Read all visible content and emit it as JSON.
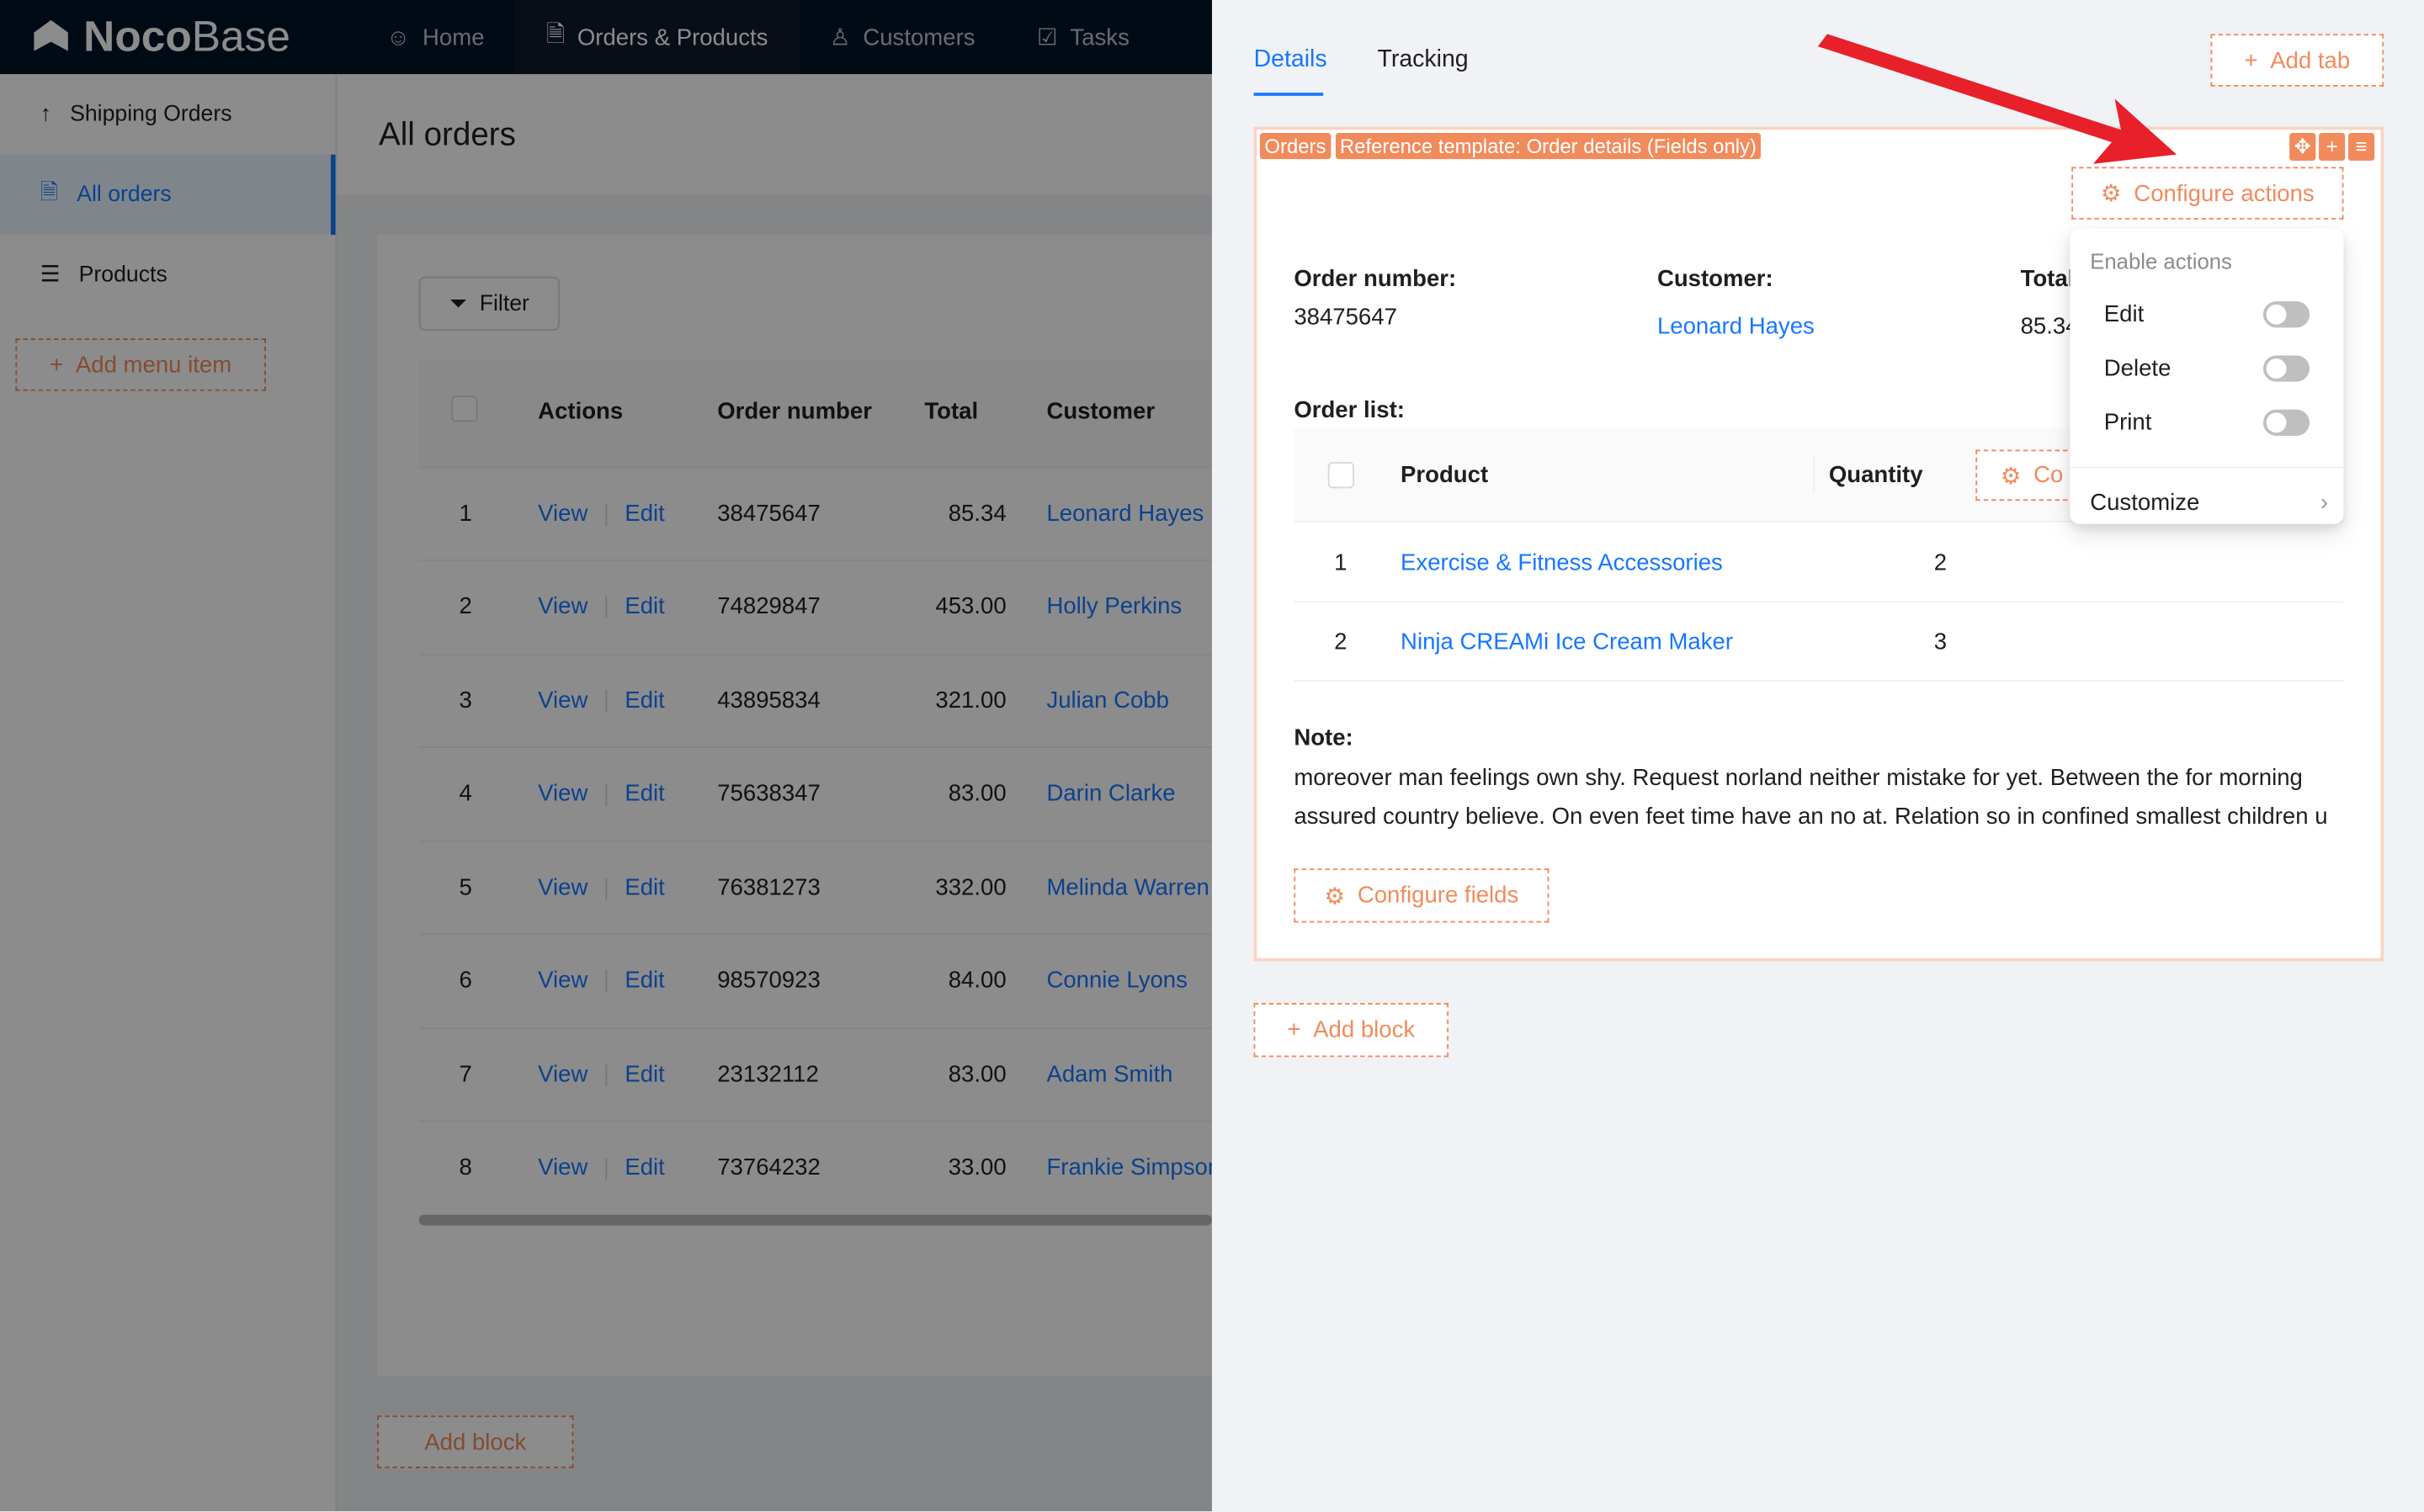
{
  "app": {
    "logo_bold": "Noco",
    "logo_thin": "Base"
  },
  "topnav": [
    {
      "label": "Home",
      "icon": "smile-icon"
    },
    {
      "label": "Orders & Products",
      "icon": "file-check-icon",
      "active": true
    },
    {
      "label": "Customers",
      "icon": "users-icon"
    },
    {
      "label": "Tasks",
      "icon": "check-square-icon"
    }
  ],
  "sidebar": {
    "items": [
      {
        "label": "Shipping Orders",
        "icon": "arrow-up-icon"
      },
      {
        "label": "All orders",
        "icon": "file-check-icon",
        "selected": true
      },
      {
        "label": "Products",
        "icon": "list-icon"
      }
    ],
    "add_label": "Add menu item"
  },
  "page": {
    "title": "All orders",
    "filter_label": "Filter",
    "add_block_label": "Add block"
  },
  "orders_table": {
    "columns": [
      "Actions",
      "Order number",
      "Total",
      "Customer"
    ],
    "view_label": "View",
    "edit_label": "Edit",
    "rows": [
      {
        "no": "1",
        "order": "38475647",
        "total": "85.34",
        "customer": "Leonard Hayes"
      },
      {
        "no": "2",
        "order": "74829847",
        "total": "453.00",
        "customer": "Holly Perkins"
      },
      {
        "no": "3",
        "order": "43895834",
        "total": "321.00",
        "customer": "Julian Cobb"
      },
      {
        "no": "4",
        "order": "75638347",
        "total": "83.00",
        "customer": "Darin Clarke"
      },
      {
        "no": "5",
        "order": "76381273",
        "total": "332.00",
        "customer": "Melinda Warren"
      },
      {
        "no": "6",
        "order": "98570923",
        "total": "84.00",
        "customer": "Connie Lyons"
      },
      {
        "no": "7",
        "order": "23132112",
        "total": "83.00",
        "customer": "Adam Smith"
      },
      {
        "no": "8",
        "order": "73764232",
        "total": "33.00",
        "customer": "Frankie Simpson"
      }
    ]
  },
  "drawer": {
    "tabs": [
      {
        "label": "Details",
        "active": true
      },
      {
        "label": "Tracking"
      }
    ],
    "add_tab_label": "Add tab",
    "block_tags": [
      "Orders",
      "Reference template: Order details (Fields only)"
    ],
    "configure_actions_label": "Configure actions",
    "fields": {
      "order_number_label": "Order number:",
      "order_number": "38475647",
      "customer_label": "Customer:",
      "customer": "Leonard Hayes",
      "total_label": "Total",
      "total": "85.34"
    },
    "order_list": {
      "label": "Order list:",
      "columns": [
        "Product",
        "Quantity"
      ],
      "configure_label": "Co",
      "rows": [
        {
          "no": "1",
          "product": "Exercise & Fitness Accessories",
          "qty": "2"
        },
        {
          "no": "2",
          "product": "Ninja CREAMi Ice Cream Maker",
          "qty": "3"
        }
      ]
    },
    "note_label": "Note:",
    "note": "moreover man feelings own shy. Request norland neither mistake for yet. Between the for morning assured country believe. On even feet time have an no at. Relation so in confined smallest children u",
    "configure_fields_label": "Configure fields",
    "add_block_label": "Add block"
  },
  "actions_menu": {
    "header": "Enable actions",
    "items": [
      {
        "label": "Edit",
        "enabled": false
      },
      {
        "label": "Delete",
        "enabled": false
      },
      {
        "label": "Print",
        "enabled": false
      }
    ],
    "customize_label": "Customize"
  },
  "colors": {
    "accent": "#1677ff",
    "config_orange": "#f18b5c",
    "arrow": "#e8202a",
    "topbar": "#001529"
  }
}
